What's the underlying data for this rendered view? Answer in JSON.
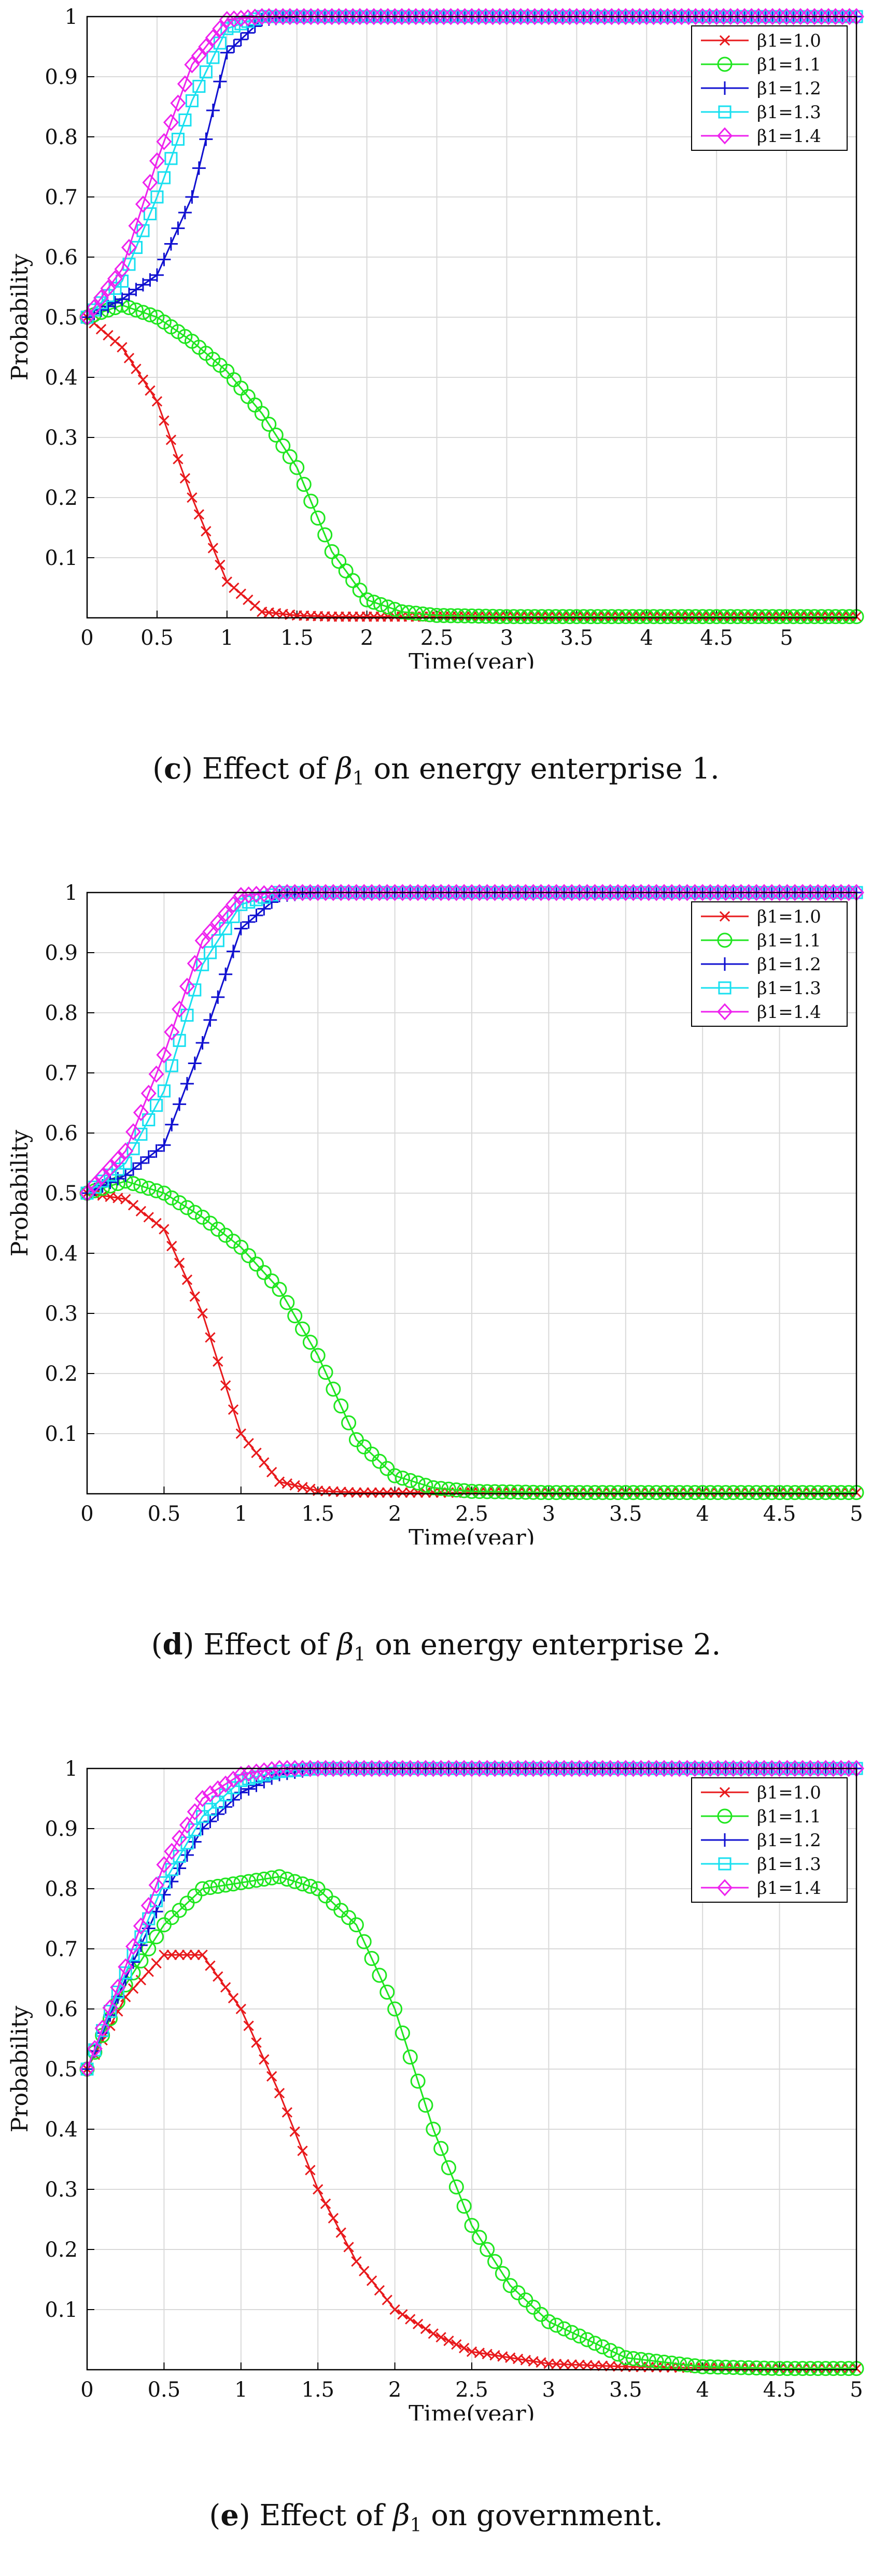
{
  "colors": {
    "red": "#e8191c",
    "green": "#1fe61f",
    "blue": "#1010d0",
    "cyan": "#18e0f0",
    "magenta": "#ee22ee",
    "grid": "#d9d9d9",
    "axis": "#000000"
  },
  "legend_entries": [
    "β1=1.0",
    "β1=1.1",
    "β1=1.2",
    "β1=1.3",
    "β1=1.4"
  ],
  "chart_data": [
    {
      "type": "line",
      "title": "",
      "xlabel": "Time(year)",
      "ylabel": "Probability",
      "xlim": [
        0,
        5.5
      ],
      "ylim": [
        0,
        1
      ],
      "x_ticks": [
        "0",
        "0.5",
        "1",
        "1.5",
        "2",
        "2.5",
        "3",
        "3.5",
        "4",
        "4.5",
        "5"
      ],
      "y_ticks": [
        "0.1",
        "0.2",
        "0.3",
        "0.4",
        "0.5",
        "0.6",
        "0.7",
        "0.8",
        "0.9",
        "1"
      ],
      "legend_position": "top-right",
      "x": [
        0,
        0.25,
        0.5,
        0.75,
        1.0,
        1.25,
        1.5,
        1.75,
        2.0,
        2.25,
        2.5,
        3.0,
        3.5,
        4.0,
        4.5,
        5.0,
        5.5
      ],
      "series": [
        {
          "name": "β1=1.0",
          "values": [
            0.5,
            0.45,
            0.36,
            0.2,
            0.06,
            0.01,
            0.004,
            0.002,
            0.002,
            0.002,
            0.002,
            0.002,
            0.002,
            0.002,
            0.002,
            0.002,
            0.002
          ]
        },
        {
          "name": "β1=1.1",
          "values": [
            0.5,
            0.52,
            0.5,
            0.46,
            0.41,
            0.34,
            0.25,
            0.11,
            0.03,
            0.01,
            0.004,
            0.002,
            0.002,
            0.002,
            0.002,
            0.002,
            0.002
          ]
        },
        {
          "name": "β1=1.2",
          "values": [
            0.5,
            0.53,
            0.57,
            0.7,
            0.94,
            0.995,
            1,
            1,
            1,
            1,
            1,
            1,
            1,
            1,
            1,
            1,
            1
          ]
        },
        {
          "name": "β1=1.3",
          "values": [
            0.5,
            0.56,
            0.7,
            0.86,
            0.98,
            1,
            1,
            1,
            1,
            1,
            1,
            1,
            1,
            1,
            1,
            1,
            1
          ]
        },
        {
          "name": "β1=1.4",
          "values": [
            0.5,
            0.58,
            0.76,
            0.92,
            0.995,
            1,
            1,
            1,
            1,
            1,
            1,
            1,
            1,
            1,
            1,
            1,
            1
          ]
        }
      ]
    },
    {
      "type": "line",
      "title": "",
      "xlabel": "Time(year)",
      "ylabel": "Probability",
      "xlim": [
        0,
        5
      ],
      "ylim": [
        0,
        1
      ],
      "x_ticks": [
        "0",
        "0.5",
        "1",
        "1.5",
        "2",
        "2.5",
        "3",
        "3.5",
        "4",
        "4.5",
        "5"
      ],
      "y_ticks": [
        "0.1",
        "0.2",
        "0.3",
        "0.4",
        "0.5",
        "0.6",
        "0.7",
        "0.8",
        "0.9",
        "1"
      ],
      "legend_position": "top-right",
      "x": [
        0,
        0.25,
        0.5,
        0.75,
        1.0,
        1.25,
        1.5,
        1.75,
        2.0,
        2.25,
        2.5,
        3.0,
        3.5,
        4.0,
        4.5,
        5.0
      ],
      "series": [
        {
          "name": "β1=1.0",
          "values": [
            0.5,
            0.49,
            0.44,
            0.3,
            0.1,
            0.02,
            0.005,
            0.002,
            0.002,
            0.002,
            0.002,
            0.002,
            0.002,
            0.002,
            0.002,
            0.002
          ]
        },
        {
          "name": "β1=1.1",
          "values": [
            0.5,
            0.52,
            0.5,
            0.46,
            0.41,
            0.34,
            0.23,
            0.09,
            0.03,
            0.01,
            0.004,
            0.002,
            0.002,
            0.002,
            0.002,
            0.002
          ]
        },
        {
          "name": "β1=1.2",
          "values": [
            0.5,
            0.53,
            0.58,
            0.75,
            0.94,
            0.995,
            1,
            1,
            1,
            1,
            1,
            1,
            1,
            1,
            1,
            1
          ]
        },
        {
          "name": "β1=1.3",
          "values": [
            0.5,
            0.55,
            0.67,
            0.88,
            0.98,
            1,
            1,
            1,
            1,
            1,
            1,
            1,
            1,
            1,
            1,
            1
          ]
        },
        {
          "name": "β1=1.4",
          "values": [
            0.5,
            0.57,
            0.73,
            0.92,
            0.995,
            1,
            1,
            1,
            1,
            1,
            1,
            1,
            1,
            1,
            1,
            1
          ]
        }
      ]
    },
    {
      "type": "line",
      "title": "",
      "xlabel": "Time(year)",
      "ylabel": "Probability",
      "xlim": [
        0,
        5
      ],
      "ylim": [
        0,
        1
      ],
      "x_ticks": [
        "0",
        "0.5",
        "1",
        "1.5",
        "2",
        "2.5",
        "3",
        "3.5",
        "4",
        "4.5",
        "5"
      ],
      "y_ticks": [
        "0.1",
        "0.2",
        "0.3",
        "0.4",
        "0.5",
        "0.6",
        "0.7",
        "0.8",
        "0.9",
        "1"
      ],
      "legend_position": "top-right",
      "x": [
        0,
        0.25,
        0.5,
        0.75,
        1.0,
        1.25,
        1.5,
        1.75,
        2.0,
        2.25,
        2.5,
        2.75,
        3.0,
        3.5,
        4.0,
        4.5,
        5.0
      ],
      "series": [
        {
          "name": "β1=1.0",
          "values": [
            0.5,
            0.62,
            0.69,
            0.69,
            0.6,
            0.46,
            0.3,
            0.18,
            0.1,
            0.06,
            0.03,
            0.02,
            0.01,
            0.005,
            0.003,
            0.002,
            0.002
          ]
        },
        {
          "name": "β1=1.1",
          "values": [
            0.5,
            0.64,
            0.74,
            0.8,
            0.81,
            0.82,
            0.8,
            0.74,
            0.6,
            0.4,
            0.24,
            0.14,
            0.08,
            0.02,
            0.005,
            0.002,
            0.002
          ]
        },
        {
          "name": "β1=1.2",
          "values": [
            0.5,
            0.65,
            0.79,
            0.9,
            0.96,
            0.99,
            1,
            1,
            1,
            1,
            1,
            1,
            1,
            1,
            1,
            1,
            1
          ]
        },
        {
          "name": "β1=1.3",
          "values": [
            0.5,
            0.66,
            0.81,
            0.92,
            0.98,
            0.995,
            1,
            1,
            1,
            1,
            1,
            1,
            1,
            1,
            1,
            1,
            1
          ]
        },
        {
          "name": "β1=1.4",
          "values": [
            0.5,
            0.67,
            0.84,
            0.95,
            0.99,
            1,
            1,
            1,
            1,
            1,
            1,
            1,
            1,
            1,
            1,
            1,
            1
          ]
        }
      ]
    }
  ],
  "captions": [
    {
      "label": "c",
      "text": "Effect of ",
      "symbol": "β",
      "sub": "1",
      "rest": " on energy enterprise 1."
    },
    {
      "label": "d",
      "text": "Effect of ",
      "symbol": "β",
      "sub": "1",
      "rest": " on energy enterprise 2."
    },
    {
      "label": "e",
      "text": "Effect of ",
      "symbol": "β",
      "sub": "1",
      "rest": " on government."
    }
  ]
}
